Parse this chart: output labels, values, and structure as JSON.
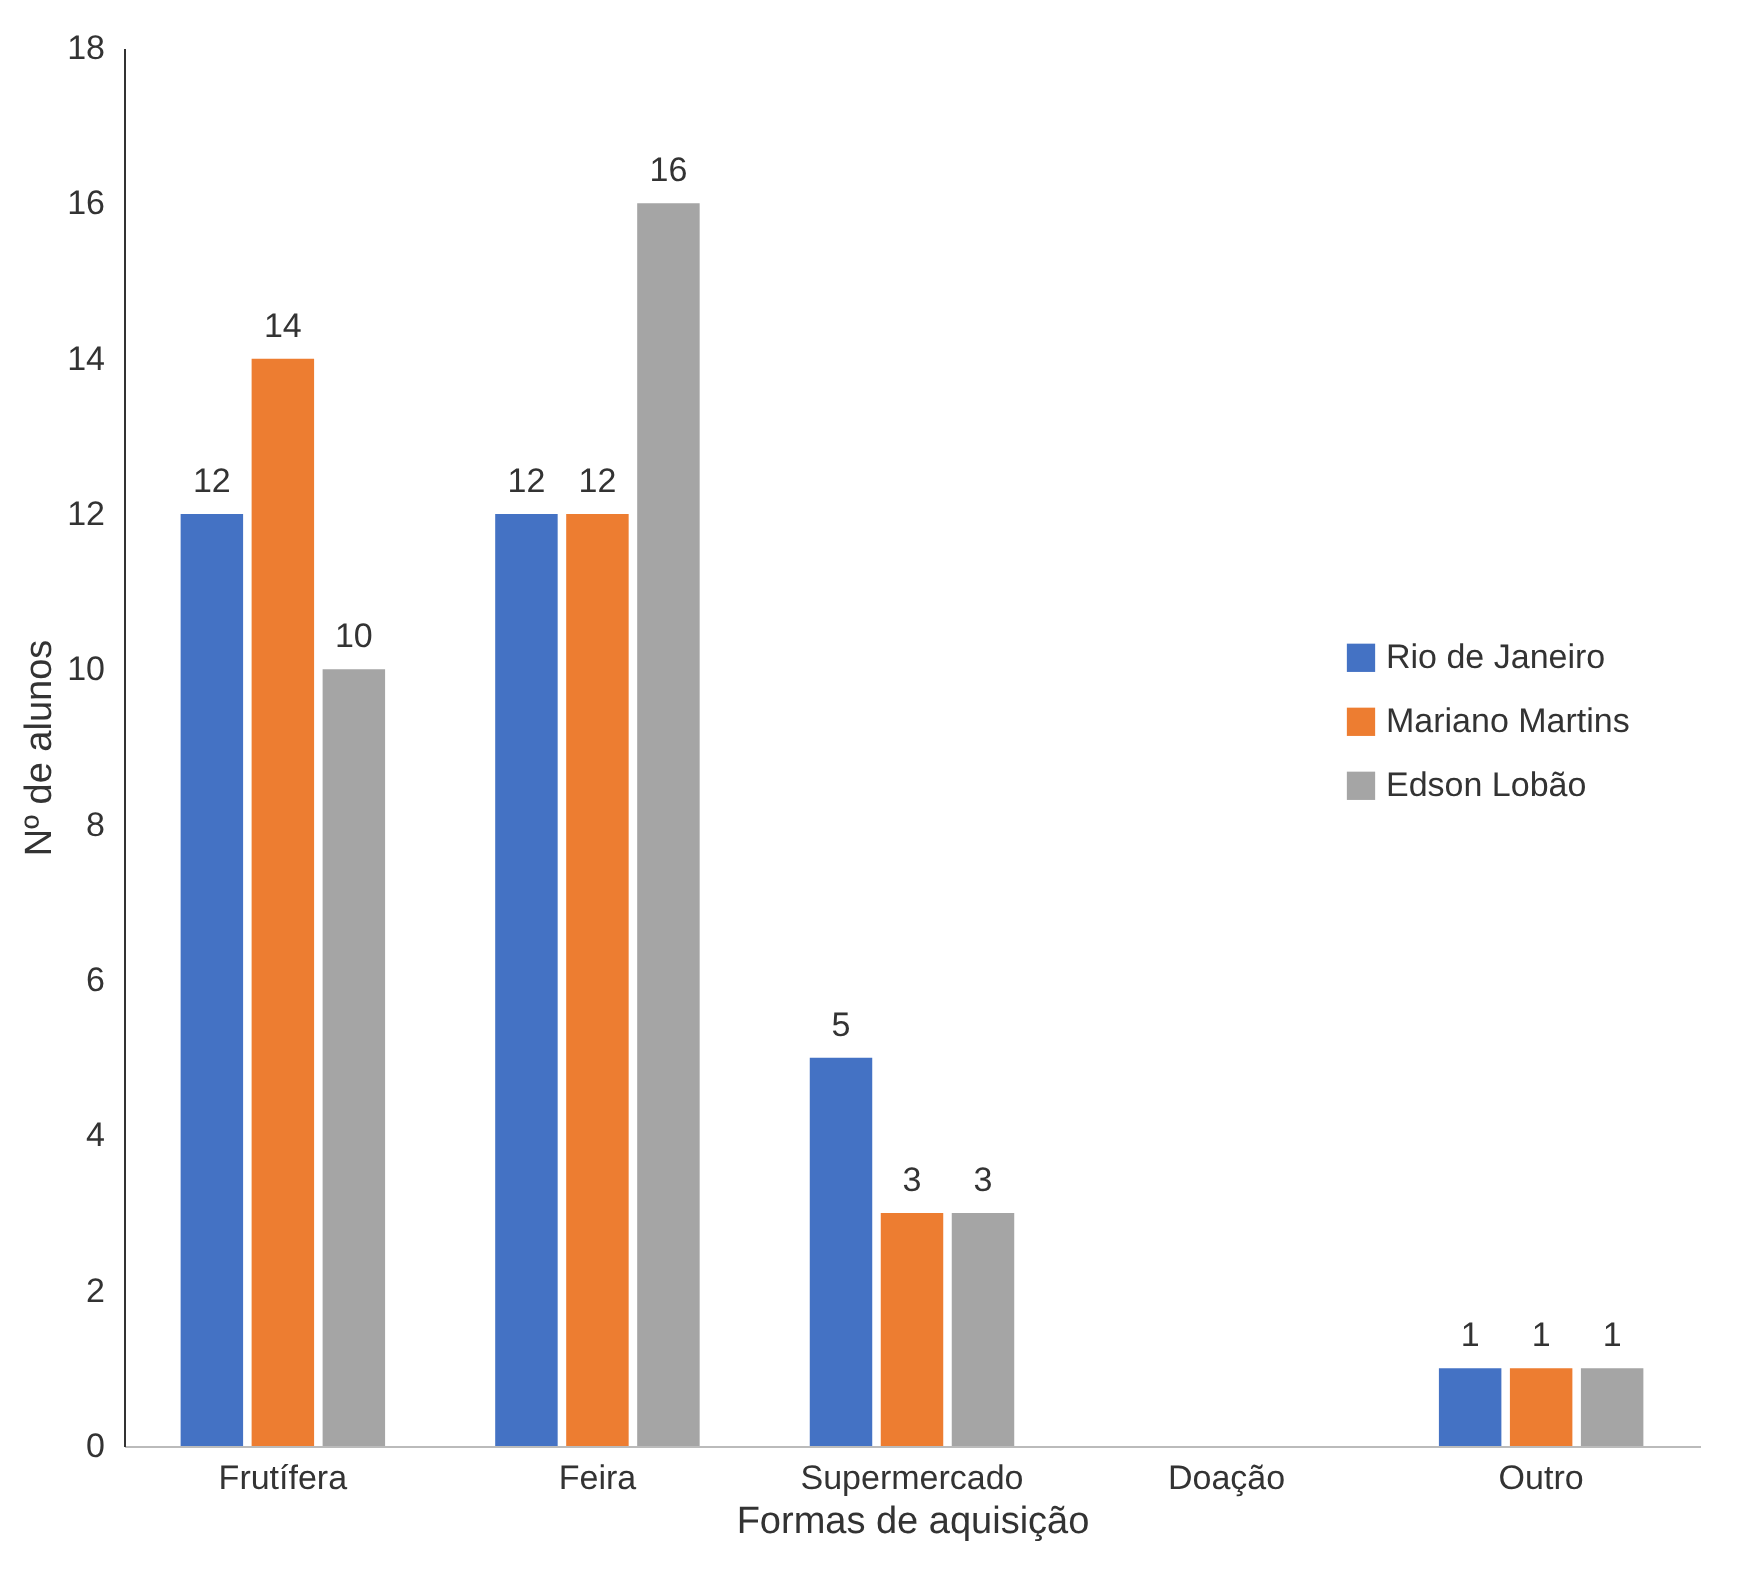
{
  "chart_data": {
    "type": "bar",
    "xlabel": "Formas de aquisição",
    "ylabel": "Nº de alunos",
    "categories": [
      "Frutífera",
      "Feira",
      "Supermercado",
      "Doação",
      "Outro"
    ],
    "series": [
      {
        "name": "Rio de Janeiro",
        "color": "#4472c4",
        "values": [
          12,
          12,
          5,
          null,
          1
        ]
      },
      {
        "name": "Mariano Martins",
        "color": "#ed7d31",
        "values": [
          14,
          12,
          3,
          null,
          1
        ]
      },
      {
        "name": "Edson Lobão",
        "color": "#a5a5a5",
        "values": [
          10,
          16,
          3,
          null,
          1
        ]
      }
    ],
    "ylim": [
      0,
      18
    ],
    "yticks": [
      0,
      2,
      4,
      6,
      8,
      10,
      12,
      14,
      16,
      18
    ],
    "grid": false,
    "legend": "right",
    "data_labels": true
  }
}
